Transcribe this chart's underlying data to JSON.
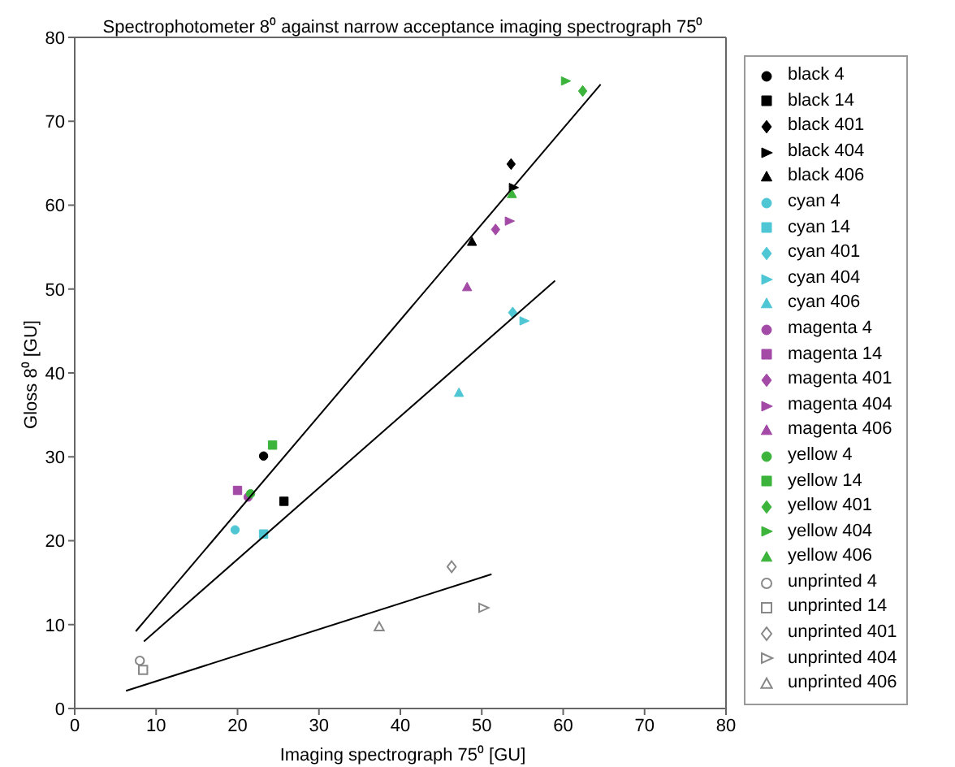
{
  "chart_data": {
    "type": "scatter",
    "title": "Spectrophotometer 8⁰ against narrow acceptance imaging spectrograph 75⁰",
    "xlabel": "Imaging spectrograph 75⁰ [GU]",
    "ylabel": "Gloss 8⁰ [GU]",
    "xlim": [
      0,
      80
    ],
    "ylim": [
      0,
      80
    ],
    "xticks": [
      0,
      10,
      20,
      30,
      40,
      50,
      60,
      70,
      80
    ],
    "yticks": [
      0,
      10,
      20,
      30,
      40,
      50,
      60,
      70,
      80
    ],
    "grid": false,
    "legend": "right",
    "series": [
      {
        "name": "black 4",
        "color": "#000000",
        "marker": "circle",
        "x": [
          23.2
        ],
        "values": [
          30.1
        ]
      },
      {
        "name": "black 14",
        "color": "#000000",
        "marker": "square",
        "x": [
          25.7
        ],
        "values": [
          24.7
        ]
      },
      {
        "name": "black 401",
        "color": "#000000",
        "marker": "diamond",
        "x": [
          53.6
        ],
        "values": [
          64.9
        ]
      },
      {
        "name": "black 404",
        "color": "#000000",
        "marker": "triangle-right",
        "x": [
          53.9
        ],
        "values": [
          62.1
        ]
      },
      {
        "name": "black 406",
        "color": "#000000",
        "marker": "triangle",
        "x": [
          48.8
        ],
        "values": [
          55.6
        ]
      },
      {
        "name": "cyan 4",
        "color": "#4ec6d4",
        "marker": "circle",
        "x": [
          19.7
        ],
        "values": [
          21.3
        ]
      },
      {
        "name": "cyan 14",
        "color": "#4ec6d4",
        "marker": "square",
        "x": [
          23.2
        ],
        "values": [
          20.8
        ]
      },
      {
        "name": "cyan 401",
        "color": "#4ec6d4",
        "marker": "diamond",
        "x": [
          53.8
        ],
        "values": [
          47.2
        ]
      },
      {
        "name": "cyan 404",
        "color": "#4ec6d4",
        "marker": "triangle-right",
        "x": [
          55.2
        ],
        "values": [
          46.2
        ]
      },
      {
        "name": "cyan 406",
        "color": "#4ec6d4",
        "marker": "triangle",
        "x": [
          47.2
        ],
        "values": [
          37.6
        ]
      },
      {
        "name": "magenta 4",
        "color": "#a24aa6",
        "marker": "circle",
        "x": [
          21.3
        ],
        "values": [
          25.2
        ]
      },
      {
        "name": "magenta 14",
        "color": "#a24aa6",
        "marker": "square",
        "x": [
          20.0
        ],
        "values": [
          26.0
        ]
      },
      {
        "name": "magenta 401",
        "color": "#a24aa6",
        "marker": "diamond",
        "x": [
          51.7
        ],
        "values": [
          57.1
        ]
      },
      {
        "name": "magenta 404",
        "color": "#a24aa6",
        "marker": "triangle-right",
        "x": [
          53.4
        ],
        "values": [
          58.1
        ]
      },
      {
        "name": "magenta 406",
        "color": "#a24aa6",
        "marker": "triangle",
        "x": [
          48.2
        ],
        "values": [
          50.2
        ]
      },
      {
        "name": "yellow 4",
        "color": "#3cb43c",
        "marker": "circle",
        "x": [
          21.6
        ],
        "values": [
          25.6
        ]
      },
      {
        "name": "yellow 14",
        "color": "#3cb43c",
        "marker": "square",
        "x": [
          24.3
        ],
        "values": [
          31.4
        ]
      },
      {
        "name": "yellow 401",
        "color": "#3cb43c",
        "marker": "diamond",
        "x": [
          62.4
        ],
        "values": [
          73.6
        ]
      },
      {
        "name": "yellow 404",
        "color": "#3cb43c",
        "marker": "triangle-right",
        "x": [
          60.3
        ],
        "values": [
          74.8
        ]
      },
      {
        "name": "yellow 406",
        "color": "#3cb43c",
        "marker": "triangle",
        "x": [
          53.7
        ],
        "values": [
          61.3
        ]
      },
      {
        "name": "unprinted 4",
        "color": "#888888",
        "marker": "circle-open",
        "x": [
          8.0
        ],
        "values": [
          5.7
        ]
      },
      {
        "name": "unprinted 14",
        "color": "#888888",
        "marker": "square-open",
        "x": [
          8.4
        ],
        "values": [
          4.6
        ]
      },
      {
        "name": "unprinted 401",
        "color": "#888888",
        "marker": "diamond-open",
        "x": [
          46.3
        ],
        "values": [
          16.9
        ]
      },
      {
        "name": "unprinted 404",
        "color": "#888888",
        "marker": "triangle-right-open",
        "x": [
          50.2
        ],
        "values": [
          12.0
        ]
      },
      {
        "name": "unprinted 406",
        "color": "#888888",
        "marker": "triangle-open",
        "x": [
          37.4
        ],
        "values": [
          9.7
        ]
      },
      {
        "type": "line",
        "color": "#000000",
        "marker": "none",
        "x": [
          7.5,
          64.6
        ],
        "values": [
          9.2,
          74.4
        ]
      },
      {
        "type": "line",
        "color": "#000000",
        "marker": "none",
        "x": [
          8.5,
          59.0
        ],
        "values": [
          8.0,
          51.0
        ]
      },
      {
        "type": "line",
        "color": "#000000",
        "marker": "none",
        "x": [
          6.3,
          51.2
        ],
        "values": [
          2.1,
          16.0
        ]
      }
    ]
  }
}
